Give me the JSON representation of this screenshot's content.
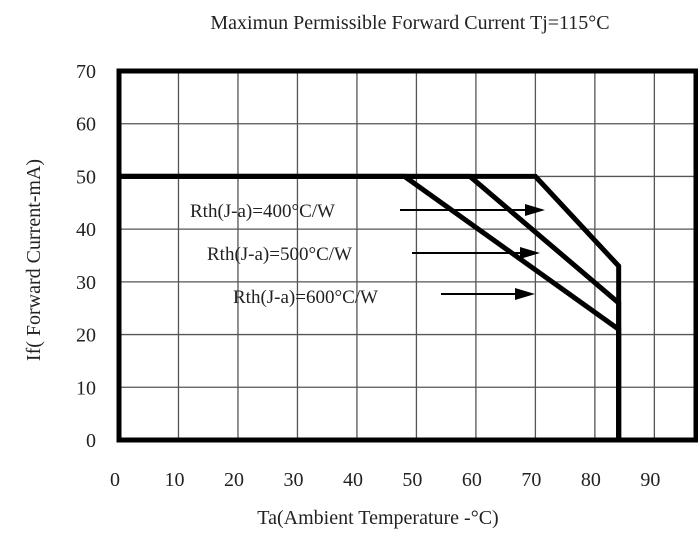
{
  "chart_data": {
    "type": "line",
    "title": "Maximun Permissible Forward Current Tj=115°C",
    "xlabel": "Ta(Ambient Temperature -°C)",
    "ylabel": "If( Forward Current-mA)",
    "xlim": [
      0,
      97
    ],
    "ylim": [
      0,
      70
    ],
    "x_ticks": [
      0,
      10,
      20,
      30,
      40,
      50,
      60,
      70,
      80,
      90
    ],
    "y_ticks": [
      0,
      10,
      20,
      30,
      40,
      50,
      60,
      70
    ],
    "grid": true,
    "series": [
      {
        "name": "Rth(J-a)=400°C/W",
        "x": [
          0,
          70,
          84,
          84
        ],
        "y": [
          50,
          50,
          33,
          0
        ]
      },
      {
        "name": "Rth(J-a)=500°C/W",
        "x": [
          0,
          59,
          84,
          84
        ],
        "y": [
          50,
          50,
          26,
          0
        ]
      },
      {
        "name": "Rth(J-a)=600°C/W",
        "x": [
          0,
          48,
          84,
          84
        ],
        "y": [
          50,
          50,
          21,
          0
        ]
      }
    ],
    "annotations": [
      {
        "text": "Rth(J-a)=400°C/W",
        "series": 0
      },
      {
        "text": "Rth(J-a)=500°C/W",
        "series": 1
      },
      {
        "text": "Rth(J-a)=600°C/W",
        "series": 2
      }
    ]
  }
}
